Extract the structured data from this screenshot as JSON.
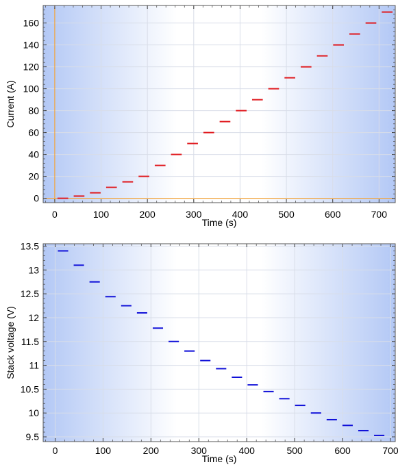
{
  "chart_data": [
    {
      "type": "line",
      "xlabel": "Time (s)",
      "ylabel": "Current (A)",
      "xlim": [
        -25,
        735
      ],
      "ylim": [
        -4,
        176
      ],
      "xticks": [
        0,
        100,
        200,
        300,
        400,
        500,
        600,
        700
      ],
      "yticks": [
        0,
        20,
        40,
        60,
        80,
        100,
        120,
        140,
        160
      ],
      "ytick_labels": [
        "0",
        "20",
        "40",
        "60",
        "80",
        "100",
        "120",
        "140",
        "160"
      ],
      "grid": true,
      "reference_lines": {
        "x": 0,
        "y": 0,
        "color": "#f2a33a"
      },
      "series": [
        {
          "color": "#e0191e",
          "segments": [
            {
              "x": [
                0,
                35
              ],
              "y": 0
            },
            {
              "x": [
                35,
                70
              ],
              "y": 2
            },
            {
              "x": [
                70,
                105
              ],
              "y": 5
            },
            {
              "x": [
                105,
                140
              ],
              "y": 10
            },
            {
              "x": [
                140,
                175
              ],
              "y": 15
            },
            {
              "x": [
                175,
                210
              ],
              "y": 20
            },
            {
              "x": [
                210,
                245
              ],
              "y": 30
            },
            {
              "x": [
                245,
                280
              ],
              "y": 40
            },
            {
              "x": [
                280,
                315
              ],
              "y": 50
            },
            {
              "x": [
                315,
                350
              ],
              "y": 60
            },
            {
              "x": [
                350,
                385
              ],
              "y": 70
            },
            {
              "x": [
                385,
                420
              ],
              "y": 80
            },
            {
              "x": [
                420,
                455
              ],
              "y": 90
            },
            {
              "x": [
                455,
                490
              ],
              "y": 100
            },
            {
              "x": [
                490,
                525
              ],
              "y": 110
            },
            {
              "x": [
                525,
                560
              ],
              "y": 120
            },
            {
              "x": [
                560,
                595
              ],
              "y": 130
            },
            {
              "x": [
                595,
                630
              ],
              "y": 140
            },
            {
              "x": [
                630,
                665
              ],
              "y": 150
            },
            {
              "x": [
                665,
                700
              ],
              "y": 160
            },
            {
              "x": [
                700,
                735
              ],
              "y": 170
            }
          ]
        }
      ]
    },
    {
      "type": "line",
      "xlabel": "Time (s)",
      "ylabel": "Stack voltage (V)",
      "xlim": [
        -25,
        710
      ],
      "ylim": [
        9.4,
        13.55
      ],
      "xticks": [
        0,
        100,
        200,
        300,
        400,
        500,
        600,
        700
      ],
      "yticks": [
        9.5,
        10,
        10.5,
        11,
        11.5,
        12,
        12.5,
        13,
        13.5
      ],
      "ytick_labels": [
        "9.5",
        "10",
        "10.5",
        "11",
        "11.5",
        "12",
        "12.5",
        "13",
        "13.5"
      ],
      "grid": true,
      "series": [
        {
          "color": "#1010d8",
          "segments": [
            {
              "x": [
                0,
                33
              ],
              "y": 13.4
            },
            {
              "x": [
                33,
                66
              ],
              "y": 13.1
            },
            {
              "x": [
                66,
                99
              ],
              "y": 12.75
            },
            {
              "x": [
                99,
                132
              ],
              "y": 12.44
            },
            {
              "x": [
                132,
                165
              ],
              "y": 12.25
            },
            {
              "x": [
                165,
                198
              ],
              "y": 12.1
            },
            {
              "x": [
                198,
                231
              ],
              "y": 11.78
            },
            {
              "x": [
                231,
                264
              ],
              "y": 11.5
            },
            {
              "x": [
                264,
                297
              ],
              "y": 11.3
            },
            {
              "x": [
                297,
                330
              ],
              "y": 11.1
            },
            {
              "x": [
                330,
                363
              ],
              "y": 10.93
            },
            {
              "x": [
                363,
                396
              ],
              "y": 10.75
            },
            {
              "x": [
                396,
                429
              ],
              "y": 10.59
            },
            {
              "x": [
                429,
                462
              ],
              "y": 10.45
            },
            {
              "x": [
                462,
                495
              ],
              "y": 10.3
            },
            {
              "x": [
                495,
                528
              ],
              "y": 10.16
            },
            {
              "x": [
                528,
                561
              ],
              "y": 10.0
            },
            {
              "x": [
                561,
                594
              ],
              "y": 9.86
            },
            {
              "x": [
                594,
                627
              ],
              "y": 9.74
            },
            {
              "x": [
                627,
                660
              ],
              "y": 9.63
            },
            {
              "x": [
                660,
                693
              ],
              "y": 9.53
            }
          ]
        }
      ]
    }
  ]
}
